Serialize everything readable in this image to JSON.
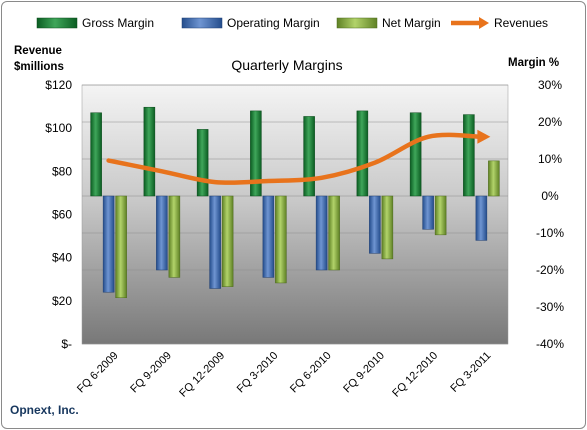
{
  "chart_data": {
    "type": "bar",
    "title": "Quarterly Margins",
    "company": "Opnext, Inc.",
    "left_axis_title": [
      "Revenue",
      "$millions"
    ],
    "right_axis_title": "Margin %",
    "categories": [
      "FQ 6-2009",
      "FQ 9-2009",
      "FQ 12-2009",
      "FQ 3-2010",
      "FQ 6-2010",
      "FQ 9-2010",
      "FQ 12-2010",
      "FQ 3-2011"
    ],
    "left_ticks": [
      "$120",
      "$100",
      "$80",
      "$60",
      "$40",
      "$20",
      "$-"
    ],
    "right_ticks": [
      "30%",
      "20%",
      "10%",
      "0%",
      "-10%",
      "-20%",
      "-30%",
      "-40%"
    ],
    "ylim_left": [
      0,
      120
    ],
    "ylim_right": [
      -40,
      30
    ],
    "grid": true,
    "legend_position": "top",
    "series": [
      {
        "name": "Gross Margin",
        "axis": "right",
        "kind": "bar",
        "color": "#1e7a3c",
        "values": [
          22.5,
          24,
          18,
          23,
          21.5,
          23,
          22.5,
          22
        ]
      },
      {
        "name": "Operating Margin",
        "axis": "right",
        "kind": "bar",
        "color": "#3f6db3",
        "values": [
          -26,
          -20,
          -25,
          -22,
          -20,
          -15.5,
          -9,
          -12
        ]
      },
      {
        "name": "Net Margin",
        "axis": "right",
        "kind": "bar",
        "color": "#8db041",
        "values": [
          -27.5,
          -22,
          -24.5,
          -23.5,
          -20,
          -17,
          -10.5,
          9.5
        ]
      },
      {
        "name": "Revenues",
        "axis": "left",
        "kind": "line",
        "color": "#e8731c",
        "values": [
          85,
          80,
          75,
          75.5,
          77,
          84,
          96,
          96
        ]
      }
    ]
  }
}
